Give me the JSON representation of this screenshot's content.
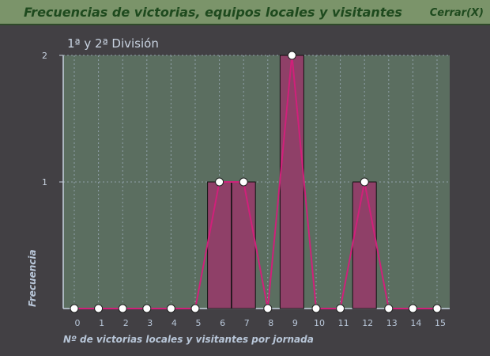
{
  "header": {
    "title": "Frecuencias de victorias, equipos locales y visitantes",
    "close_label": "Cerrar(X)"
  },
  "colors": {
    "header": "#7b946a",
    "background": "#424044",
    "plot": "#5b6e60",
    "bar": "#8f4068",
    "line": "#d0207a"
  },
  "chart_data": {
    "type": "bar",
    "title": "1ª y 2ª División",
    "xlabel": "Nº de victorias locales y visitantes por jornada",
    "ylabel": "Frecuencia",
    "categories": [
      "0",
      "1",
      "2",
      "3",
      "4",
      "5",
      "6",
      "7",
      "8",
      "9",
      "10",
      "11",
      "12",
      "13",
      "14",
      "15"
    ],
    "values": [
      0,
      0,
      0,
      0,
      0,
      0,
      1,
      1,
      0,
      2,
      0,
      0,
      1,
      0,
      0,
      0
    ],
    "overlay": "line with markers",
    "ylim": [
      0,
      2
    ],
    "yticks": [
      "1",
      "2"
    ],
    "grid": true
  }
}
